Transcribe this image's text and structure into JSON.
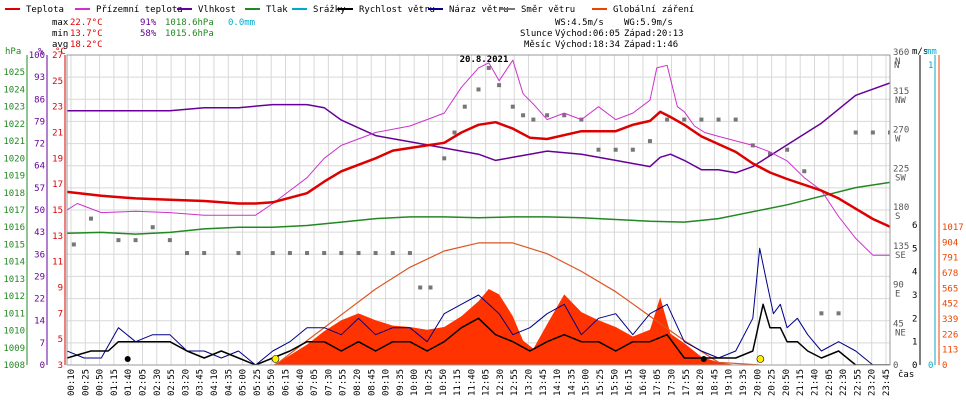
{
  "legend": [
    {
      "label": "Teplota",
      "color": "#dd0000"
    },
    {
      "label": "Přízemní teplota",
      "color": "#cc33cc"
    },
    {
      "label": "Vlhkost",
      "color": "#660099"
    },
    {
      "label": "Tlak",
      "color": "#228822"
    },
    {
      "label": "Srážky",
      "color": "#00aacc"
    },
    {
      "label": "Rychlost větru",
      "color": "#000000"
    },
    {
      "label": "Náraz větru",
      "color": "#000088"
    },
    {
      "label": "Směr větru",
      "color": "#777777"
    },
    {
      "label": "Globální záření",
      "color": "#ee4400"
    }
  ],
  "stats": {
    "max": {
      "label": "max",
      "temp": "22.7°C",
      "hum": "91%",
      "pres": "1018.6hPa",
      "rain": "0.0mm"
    },
    "min": {
      "label": "min",
      "temp": "13.7°C",
      "hum": "58%",
      "pres": "1015.6hPa"
    },
    "avg": {
      "label": "avg",
      "temp": "18.2°C"
    }
  },
  "wind_info": {
    "ws": "WS:4.5m/s",
    "wg": "WG:5.9m/s"
  },
  "sun": {
    "label": "Slunce",
    "rise": "Východ:06:05",
    "set": "Západ:20:13"
  },
  "moon": {
    "label": "Měsíc",
    "rise": "Východ:18:34",
    "set": "Západ:1:46"
  },
  "colors": {
    "grid": "#d8d8d8",
    "frame": "#999999",
    "radiation": "#ff3300",
    "sun_curve": "#dd5522",
    "sun_dot": "#ffee00"
  },
  "chart_data": {
    "type": "line",
    "title": "20.8.2021",
    "xlabel": "čas",
    "x_ticks": [
      "00:10",
      "00:25",
      "00:50",
      "01:15",
      "01:40",
      "02:05",
      "02:30",
      "02:55",
      "03:20",
      "03:45",
      "04:10",
      "04:35",
      "05:00",
      "05:25",
      "05:50",
      "06:15",
      "06:40",
      "07:05",
      "07:30",
      "07:55",
      "08:20",
      "08:45",
      "09:10",
      "09:35",
      "10:00",
      "10:25",
      "10:50",
      "11:15",
      "11:40",
      "12:05",
      "12:30",
      "12:55",
      "13:20",
      "13:45",
      "14:10",
      "14:35",
      "15:00",
      "15:25",
      "15:50",
      "16:15",
      "16:40",
      "17:05",
      "17:30",
      "17:55",
      "18:20",
      "18:45",
      "19:10",
      "19:35",
      "20:00",
      "20:25",
      "20:50",
      "21:15",
      "21:40",
      "22:05",
      "22:30",
      "22:55",
      "23:20",
      "23:45"
    ],
    "axes": {
      "hpa": {
        "label": "hPa",
        "range": [
          1008,
          1026
        ],
        "ticks": [
          "1008",
          "1009",
          "1010",
          "1011",
          "1012",
          "1013",
          "1014",
          "1015",
          "1016",
          "1017",
          "1018",
          "1019",
          "1020",
          "1021",
          "1022",
          "1023",
          "1024",
          "1025"
        ]
      },
      "pct": {
        "label": "%",
        "range": [
          0,
          100
        ],
        "ticks": [
          "0",
          "7",
          "14",
          "22",
          "29",
          "36",
          "43",
          "50",
          "57",
          "64",
          "72",
          "79",
          "86",
          "93",
          "100"
        ]
      },
      "degc": {
        "label": "°C",
        "range": [
          3,
          27
        ],
        "ticks": [
          "3",
          "5",
          "7",
          "9",
          "11",
          "13",
          "15",
          "17",
          "19",
          "21",
          "23",
          "25",
          "27"
        ]
      },
      "ms": {
        "label": "m/s",
        "range": [
          0,
          6
        ],
        "ticks": [
          "0",
          "1",
          "2",
          "3",
          "4",
          "5",
          "6"
        ]
      },
      "deg": {
        "label": "°",
        "ticks": [
          "0",
          "45 NE",
          "90 E",
          "135 SE",
          "180 S",
          "225 SW",
          "270 W",
          "315 NW",
          "360 N"
        ]
      },
      "mm": {
        "label": "mm",
        "ticks": [
          "0",
          "1"
        ]
      },
      "wm2": {
        "label": "W/m²",
        "range": [
          0,
          1017
        ],
        "ticks": [
          "0",
          "113",
          "226",
          "339",
          "452",
          "565",
          "678",
          "791",
          "904",
          "1017"
        ]
      }
    },
    "series": [
      {
        "name": "Teplota",
        "unit": "°C",
        "x": [
          0,
          1,
          2,
          3,
          4,
          5,
          5.5,
          6,
          7,
          7.5,
          8,
          9,
          9.5,
          10,
          11,
          11.5,
          12,
          12.5,
          13,
          13.5,
          14,
          15,
          16,
          16.5,
          17,
          17.3,
          17.6,
          18,
          18.5,
          19,
          19.5,
          20,
          20.5,
          21,
          22,
          22.5,
          23,
          23.5,
          24
        ],
        "values": [
          16.4,
          16.1,
          15.9,
          15.8,
          15.7,
          15.5,
          15.5,
          15.6,
          16.3,
          17.2,
          18,
          19,
          19.6,
          19.8,
          20.2,
          21,
          21.6,
          21.8,
          21.3,
          20.6,
          20.5,
          21.1,
          21.1,
          21.6,
          21.9,
          22.6,
          22.2,
          21.6,
          20.7,
          20.1,
          19.5,
          18.6,
          17.9,
          17.4,
          16.5,
          15.9,
          15.1,
          14.3,
          13.7
        ]
      },
      {
        "name": "Přízemní teplota",
        "unit": "°C",
        "x": [
          0,
          0.3,
          1,
          2,
          3,
          4,
          5,
          5.5,
          6,
          6.5,
          7,
          7.5,
          8,
          9,
          10,
          11,
          11.5,
          12,
          12.3,
          12.6,
          13,
          13.3,
          13.6,
          14,
          14.5,
          15,
          15.5,
          16,
          16.5,
          17,
          17.2,
          17.5,
          17.8,
          18,
          18.3,
          18.6,
          19,
          20,
          20.5,
          21,
          21.5,
          22,
          22.5,
          23,
          23.5,
          24
        ],
        "values": [
          15,
          15.5,
          14.8,
          14.9,
          14.8,
          14.6,
          14.6,
          14.6,
          15.5,
          16.5,
          17.5,
          19,
          20,
          21,
          21.5,
          22.5,
          24.5,
          26,
          26.4,
          25,
          26.6,
          24,
          23.2,
          22,
          22.5,
          22,
          23,
          22,
          22.5,
          23.5,
          26,
          26.2,
          23,
          22.6,
          21.5,
          21,
          20.7,
          20,
          19.5,
          18.8,
          17.5,
          16.5,
          14.5,
          12.8,
          11.5,
          11.5
        ]
      },
      {
        "name": "Vlhkost",
        "unit": "%",
        "x": [
          0,
          1,
          2,
          3,
          4,
          5,
          6,
          7,
          7.5,
          8,
          9,
          10,
          11,
          12,
          12.5,
          13,
          13.5,
          14,
          15,
          16,
          16.5,
          17,
          17.3,
          17.6,
          18,
          18.5,
          19,
          19.5,
          20,
          21,
          22,
          23,
          24
        ],
        "values": [
          82,
          82,
          82,
          82,
          83,
          83,
          84,
          84,
          83,
          79,
          74,
          72,
          70,
          68,
          66,
          67,
          68,
          69,
          68,
          66,
          65,
          64,
          67,
          68,
          66,
          63,
          63,
          62,
          64,
          71,
          78,
          87,
          91
        ]
      },
      {
        "name": "Tlak",
        "unit": "hPa",
        "x": [
          0,
          1,
          2,
          3,
          4,
          5,
          6,
          7,
          8,
          9,
          10,
          11,
          12,
          13,
          14,
          15,
          16,
          17,
          18,
          19,
          20,
          21,
          22,
          23,
          24
        ],
        "values": [
          1015.65,
          1015.7,
          1015.6,
          1015.7,
          1015.9,
          1016,
          1016,
          1016.1,
          1016.3,
          1016.5,
          1016.6,
          1016.6,
          1016.55,
          1016.6,
          1016.6,
          1016.55,
          1016.45,
          1016.35,
          1016.3,
          1016.5,
          1016.9,
          1017.3,
          1017.8,
          1018.3,
          1018.6
        ]
      },
      {
        "name": "Rychlost větru",
        "unit": "m/s",
        "x": [
          0,
          0.7,
          1.2,
          1.5,
          2,
          2.5,
          3,
          3.5,
          4,
          4.5,
          5,
          5.5,
          6,
          6.5,
          7,
          7.5,
          8,
          8.5,
          9,
          9.5,
          10,
          10.5,
          11,
          11.5,
          12,
          12.5,
          13,
          13.5,
          14,
          14.5,
          15,
          15.5,
          16,
          16.5,
          17,
          17.5,
          18,
          18.5,
          19,
          19.5,
          20,
          20.3,
          20.5,
          20.8,
          21,
          21.3,
          21.6,
          22,
          22.5,
          23,
          23.5,
          24
        ],
        "values": [
          0.3,
          0.6,
          0.6,
          1,
          1,
          1,
          1,
          0.6,
          0.3,
          0.6,
          0.3,
          0,
          0.3,
          0.6,
          1,
          1,
          0.6,
          1,
          0.6,
          1,
          1,
          0.6,
          1,
          1.6,
          2,
          1.3,
          1,
          0.6,
          1,
          1.3,
          1,
          1,
          0.6,
          1,
          1,
          1.3,
          0.3,
          0.3,
          0.3,
          0.3,
          0.6,
          2.6,
          1.6,
          1.6,
          1,
          1,
          0.6,
          0.3,
          0.6,
          0,
          0,
          0
        ]
      },
      {
        "name": "Náraz větru",
        "unit": "m/s",
        "x": [
          0,
          0.5,
          1,
          1.5,
          2,
          2.5,
          3,
          3.5,
          4,
          4.5,
          5,
          5.5,
          6,
          6.5,
          7,
          7.5,
          8,
          8.5,
          9,
          9.5,
          10,
          10.5,
          11,
          11.5,
          12,
          12.3,
          12.6,
          13,
          13.5,
          14,
          14.5,
          15,
          15.5,
          16,
          16.5,
          17,
          17.5,
          18,
          18.5,
          19,
          19.5,
          20,
          20.2,
          20.4,
          20.6,
          20.8,
          21,
          21.3,
          21.6,
          22,
          22.5,
          23,
          23.5,
          24
        ],
        "values": [
          0.6,
          0.3,
          0.3,
          1.6,
          1,
          1.3,
          1.3,
          0.6,
          0.6,
          0.3,
          0.6,
          0,
          0.6,
          1,
          1.6,
          1.6,
          1.3,
          2,
          1.3,
          1.6,
          1.6,
          1,
          2.2,
          2.6,
          3,
          2.6,
          2.2,
          1.3,
          1.6,
          2.2,
          2.6,
          1.3,
          2,
          2.2,
          1.3,
          2.2,
          2.6,
          1,
          0.6,
          0.3,
          0.6,
          2,
          5,
          3.6,
          2.2,
          2.6,
          1.6,
          2,
          1.3,
          0.6,
          1,
          0.6,
          0,
          0
        ]
      },
      {
        "name": "Směr větru",
        "unit": "°",
        "x": [
          0.2,
          0.7,
          1.5,
          2,
          2.5,
          3,
          3.5,
          4,
          5,
          6,
          6.5,
          7,
          7.5,
          8,
          8.5,
          9,
          9.5,
          10,
          10.3,
          10.6,
          11,
          11.3,
          11.6,
          12,
          12.3,
          12.6,
          13,
          13.3,
          13.6,
          14,
          14.5,
          15,
          15.5,
          16,
          16.5,
          17,
          17.5,
          18,
          18.5,
          19,
          19.5,
          20,
          20.5,
          21,
          21.5,
          22,
          22.5,
          23,
          23.5,
          24
        ],
        "values": [
          140,
          170,
          145,
          145,
          160,
          145,
          130,
          130,
          130,
          130,
          130,
          130,
          130,
          130,
          130,
          130,
          130,
          130,
          90,
          90,
          240,
          270,
          300,
          320,
          345,
          325,
          300,
          290,
          285,
          290,
          290,
          285,
          250,
          250,
          250,
          260,
          285,
          285,
          285,
          285,
          285,
          255,
          245,
          250,
          225,
          60,
          60,
          270,
          270,
          270
        ]
      },
      {
        "name": "Globální záření",
        "unit": "W/m²",
        "x": [
          0,
          6,
          6.3,
          7,
          7.5,
          8,
          8.5,
          9,
          9.5,
          10,
          10.5,
          11,
          11.5,
          12,
          12.3,
          12.6,
          13,
          13.3,
          13.6,
          14,
          14.5,
          15,
          15.5,
          16,
          16.5,
          17,
          17.3,
          17.6,
          18,
          18.5,
          19,
          19.5,
          19.7,
          24
        ],
        "values": [
          0,
          0,
          40,
          150,
          250,
          330,
          380,
          330,
          290,
          280,
          260,
          280,
          360,
          470,
          560,
          520,
          360,
          180,
          120,
          300,
          520,
          390,
          330,
          280,
          210,
          260,
          500,
          230,
          160,
          60,
          20,
          0,
          0,
          0
        ]
      },
      {
        "name": "Slunce",
        "unit": "W/m²",
        "x": [
          6.08,
          7,
          8,
          9,
          10,
          11,
          12,
          13,
          14,
          15,
          16,
          17,
          18,
          19,
          20.22
        ],
        "values": [
          0,
          180,
          370,
          560,
          720,
          840,
          900,
          900,
          820,
          690,
          540,
          360,
          180,
          20,
          0
        ]
      }
    ]
  }
}
